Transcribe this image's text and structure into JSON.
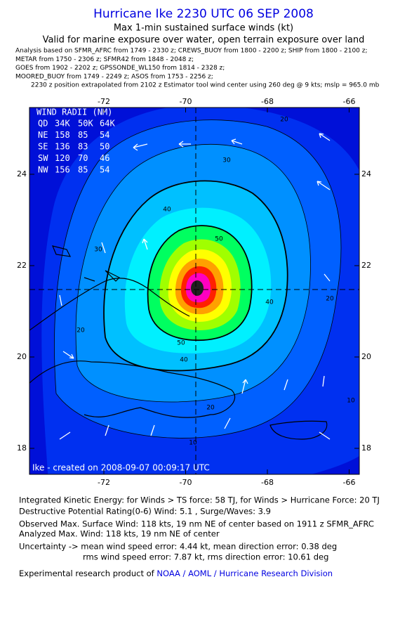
{
  "header": {
    "title": "Hurricane Ike 2230 UTC 06 SEP 2008",
    "subtitle": "Max 1-min sustained surface winds (kt)",
    "validity": "Valid for marine exposure over water, open terrain exposure over land",
    "analysis": [
      "Analysis based on   SFMR_AFRC from 1749 - 2330 z;  CREWS_BUOY from 1800 - 2200 z;  SHIP from 1800 - 2100 z;",
      "METAR from 1750 - 2306 z;  SFMR42 from 1848 - 2048 z;",
      "GOES from 1902 - 2202 z;  GPSSONDE_WL150 from 1814 - 2328 z;",
      "MOORED_BUOY from 1749 - 2249 z;  ASOS from 1753 - 2256 z;",
      "2230 z position extrapolated from 2102 z Estimator tool wind center using 260 deg @ 9 kts; mslp = 965.0 mb"
    ]
  },
  "map": {
    "lon_ticks": [
      "-72",
      "-70",
      "-68",
      "-66"
    ],
    "lat_ticks": [
      "24",
      "22",
      "20",
      "18"
    ],
    "contour_labels": [
      "20",
      "30",
      "40",
      "50",
      "30",
      "40",
      "20",
      "20",
      "10",
      "10",
      "40",
      "50",
      "20"
    ],
    "wind_radii": {
      "title": "WIND RADII (NM)",
      "rows": [
        [
          "QD",
          "34K",
          "50K",
          "64K"
        ],
        [
          "NE",
          "158",
          "85",
          "54"
        ],
        [
          "SE",
          "136",
          "83",
          "50"
        ],
        [
          "SW",
          "120",
          "70",
          "46"
        ],
        [
          "NW",
          "156",
          "85",
          "54"
        ]
      ]
    },
    "credit": "Ike - created on 2008-09-07 00:09:17 UTC"
  },
  "footer": {
    "lines": [
      "Integrated Kinetic Energy:  for Winds > TS force: 58 TJ,  for Winds > Hurricane Force: 20 TJ",
      "Destructive Potential Rating(0-6)   Wind: 5.1 , Surge/Waves: 3.9",
      "Observed Max. Surface Wind: 118 kts, 19 nm NE of center based on 1911 z SFMR_AFRC",
      "Analyzed Max. Wind: 118 kts, 19 nm NE of center",
      "Uncertainty -> mean wind speed error: 4.44 kt,   mean direction error: 0.38 deg",
      "rms wind speed error: 7.87 kt,   rms direction error: 10.61 deg"
    ],
    "product": {
      "prefix": "Experimental research product of ",
      "link": "NOAA / AOML / Hurricane Research Division"
    }
  }
}
